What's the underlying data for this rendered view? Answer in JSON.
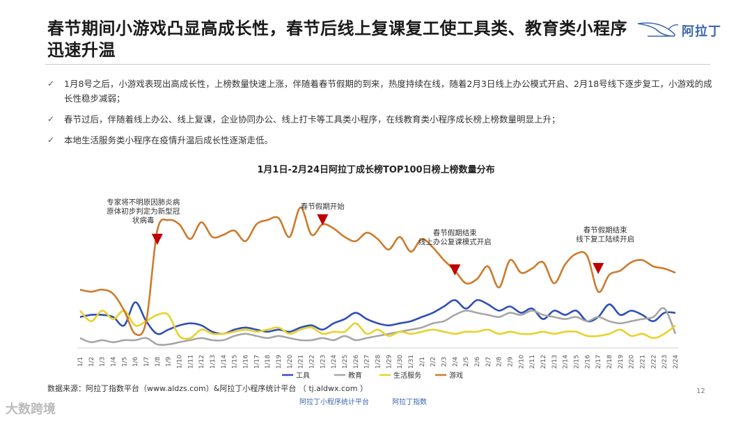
{
  "page": {
    "title": "春节期间小游戏凸显高成长性，春节后线上复课复工使工具类、教育类小程序迅速升温",
    "logo_text": "阿拉丁",
    "bullets": [
      "1月8号之后，小游戏表现出高成长性，上榜数量快速上涨，伴随着春节假期的到来，热度持续在线，随着2月3日线上办公模式开启、2月18号线下逐步复工，小游戏的成长性稳步减弱；",
      "春节过后，伴随着线上办公、线上复课，企业协同办公、线上打卡等工具类小程序，在线教育类小程序成长榜上榜数量明显上升；",
      "本地生活服务类小程序在疫情升温后成长性逐渐走低。"
    ],
    "source": "数据来源：阿拉丁指数平台（www.aldzs.com）&阿拉丁小程序统计平台 （ tj.aldwx.com ）",
    "page_number": "12",
    "footer_logos": [
      "阿拉丁小程序统计平台",
      "阿拉丁指数"
    ],
    "watermark": "大数跨境"
  },
  "chart_data": {
    "type": "line",
    "title": "1月1日-2月24日阿拉丁成长榜TOP100日榜上榜数量分布",
    "categories": [
      "1/1",
      "1/2",
      "1/3",
      "1/4",
      "1/5",
      "1/6",
      "1/7",
      "1/8",
      "1/9",
      "1/10",
      "1/11",
      "1/12",
      "1/13",
      "1/14",
      "1/15",
      "1/16",
      "1/17",
      "1/18",
      "1/19",
      "1/20",
      "1/21",
      "1/22",
      "1/23",
      "1/24",
      "1/25",
      "1/26",
      "1/27",
      "1/28",
      "1/29",
      "1/30",
      "1/31",
      "2/1",
      "2/2",
      "2/3",
      "2/4",
      "2/5",
      "2/6",
      "2/7",
      "2/8",
      "2/9",
      "2/10",
      "2/11",
      "2/12",
      "2/13",
      "2/14",
      "2/15",
      "2/16",
      "2/17",
      "2/18",
      "2/19",
      "2/20",
      "2/21",
      "2/22",
      "2/23",
      "2/24"
    ],
    "legend_position": "bottom",
    "grid": false,
    "series": [
      {
        "name": "工具",
        "color": "#2f4fb5",
        "values": [
          14,
          15,
          15,
          14,
          10,
          21,
          12,
          6,
          8,
          10,
          11,
          10,
          7,
          6,
          8,
          9,
          8,
          7,
          8,
          7,
          9,
          10,
          8,
          11,
          13,
          16,
          13,
          11,
          10,
          11,
          12,
          14,
          16,
          19,
          22,
          18,
          22,
          20,
          17,
          19,
          16,
          18,
          13,
          17,
          15,
          17,
          12,
          14,
          20,
          15,
          17,
          15,
          12,
          16,
          16
        ]
      },
      {
        "name": "教育",
        "color": "#a6a6a6",
        "values": [
          4,
          2,
          3,
          2,
          3,
          3,
          4,
          1,
          1,
          2,
          3,
          4,
          3,
          3,
          5,
          6,
          5,
          4,
          5,
          4,
          3,
          3,
          4,
          3,
          5,
          3,
          4,
          5,
          6,
          7,
          8,
          9,
          11,
          12,
          15,
          17,
          16,
          15,
          14,
          16,
          15,
          17,
          15,
          14,
          13,
          14,
          12,
          14,
          12,
          11,
          12,
          13,
          14,
          18,
          6
        ]
      },
      {
        "name": "生活服务",
        "color": "#e8d22a",
        "values": [
          17,
          12,
          17,
          13,
          17,
          10,
          12,
          15,
          15,
          5,
          4,
          8,
          6,
          6,
          7,
          8,
          7,
          8,
          9,
          6,
          8,
          9,
          6,
          7,
          7,
          11,
          6,
          8,
          5,
          7,
          6,
          7,
          8,
          7,
          6,
          7,
          7,
          8,
          6,
          7,
          6,
          6,
          7,
          6,
          7,
          7,
          5,
          5,
          6,
          8,
          5,
          6,
          4,
          6,
          10
        ]
      },
      {
        "name": "游戏",
        "color": "#cd7a2c",
        "values": [
          27,
          26,
          27,
          25,
          17,
          6,
          12,
          55,
          60,
          58,
          51,
          59,
          52,
          53,
          55,
          50,
          58,
          60,
          61,
          52,
          66,
          53,
          58,
          56,
          52,
          50,
          54,
          51,
          46,
          52,
          45,
          51,
          47,
          41,
          36,
          30,
          32,
          38,
          28,
          41,
          35,
          37,
          40,
          30,
          39,
          44,
          43,
          26,
          34,
          36,
          40,
          41,
          38,
          37,
          35
        ]
      }
    ],
    "ylim": [
      0,
      72
    ],
    "annotations": [
      {
        "text": [
          "专家将不明原因肺炎病",
          "原体初步判定为新型冠",
          "状病毒"
        ],
        "x": "1/8"
      },
      {
        "text": [
          "春节假期开始"
        ],
        "x": "1/23"
      },
      {
        "text": [
          "春节假期结束",
          "线上办公复课模式开启"
        ],
        "x": "2/4"
      },
      {
        "text": [
          "春节假期结束",
          "线下复工陆续开启"
        ],
        "x": "2/17"
      }
    ]
  }
}
